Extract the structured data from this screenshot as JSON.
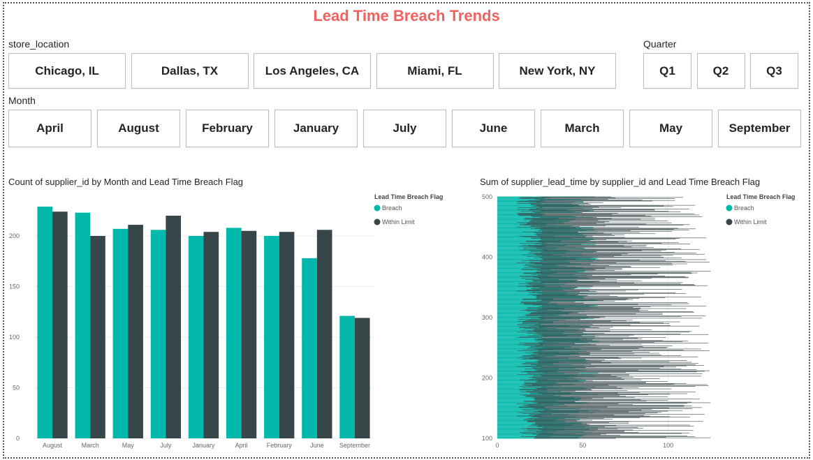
{
  "title": "Lead Time Breach Trends",
  "slicers": {
    "store_location": {
      "label": "store_location",
      "options": [
        "Chicago, IL",
        "Dallas, TX",
        "Los Angeles, CA",
        "Miami, FL",
        "New York, NY"
      ]
    },
    "quarter": {
      "label": "Quarter",
      "options": [
        "Q1",
        "Q2",
        "Q3"
      ]
    },
    "month": {
      "label": "Month",
      "options": [
        "April",
        "August",
        "February",
        "January",
        "July",
        "June",
        "March",
        "May",
        "September"
      ]
    }
  },
  "colors": {
    "breach": "#01b8aa",
    "within": "#374649"
  },
  "chart_data": [
    {
      "type": "bar",
      "title": "Count of supplier_id by Month and Lead Time Breach Flag",
      "categories": [
        "August",
        "March",
        "May",
        "July",
        "January",
        "April",
        "February",
        "June",
        "September"
      ],
      "series": [
        {
          "name": "Breach",
          "values": [
            229,
            223,
            207,
            206,
            200,
            208,
            200,
            178,
            121
          ]
        },
        {
          "name": "Within Limit",
          "values": [
            224,
            200,
            211,
            220,
            204,
            205,
            204,
            206,
            119
          ]
        }
      ],
      "legend_title": "Lead Time Breach Flag",
      "ylim": [
        0,
        240
      ],
      "yticks": [
        0,
        50,
        100,
        150,
        200
      ],
      "legend": "top-right",
      "grid": true
    },
    {
      "type": "bar",
      "orientation": "horizontal",
      "title": "Sum of supplier_lead_time by supplier_id and Lead Time Breach Flag",
      "y_range": [
        100,
        500
      ],
      "yticks": [
        100,
        200,
        300,
        400,
        500
      ],
      "xlim": [
        0,
        130
      ],
      "xticks": [
        0,
        50,
        100
      ],
      "legend_title": "Lead Time Breach Flag",
      "series_names": [
        "Breach",
        "Within Limit"
      ],
      "breach_range": [
        25,
        60
      ],
      "within_range": [
        45,
        125
      ],
      "legend": "top-right",
      "grid": true
    }
  ]
}
